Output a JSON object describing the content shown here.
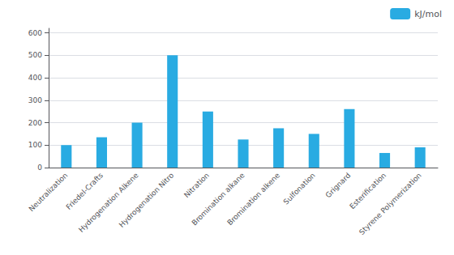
{
  "chart_data": {
    "type": "bar",
    "categories": [
      "Neutralization",
      "Friedel-Crafts",
      "Hydrogenation Alkene",
      "Hydrogenation Nitro",
      "Nitration",
      "Bromination alkane",
      "Bromination alkene",
      "Sulfonation",
      "Grignard",
      "Esterification",
      "Styrene Polymerization"
    ],
    "series": [
      {
        "name": "kJ/mol",
        "color": "#29ABE2",
        "values": [
          100,
          135,
          200,
          500,
          250,
          125,
          175,
          150,
          260,
          65,
          90
        ]
      }
    ],
    "ylim": [
      0,
      620
    ],
    "yticks": [
      0,
      100,
      200,
      300,
      400,
      500,
      600
    ],
    "grid": true,
    "legend": "upper right"
  }
}
